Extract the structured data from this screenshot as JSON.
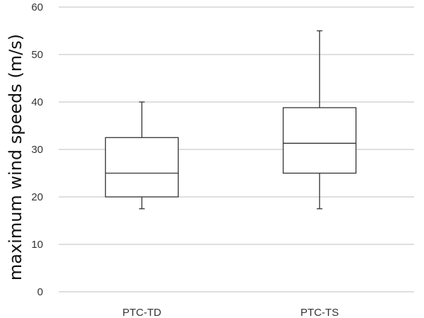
{
  "chart_data": {
    "type": "box",
    "ylabel": "maximum wind speeds (m/s)",
    "ylim": [
      0,
      60
    ],
    "yticks": [
      "0",
      "10",
      "20",
      "30",
      "40",
      "50",
      "60"
    ],
    "grid": true,
    "categories": [
      "PTC-TD",
      "PTC-TS"
    ],
    "boxes": [
      {
        "name": "PTC-TD",
        "min": 17.5,
        "q1": 20,
        "median": 25,
        "q3": 32.5,
        "max": 40
      },
      {
        "name": "PTC-TS",
        "min": 17.5,
        "q1": 25,
        "median": 31.3,
        "q3": 38.8,
        "max": 55
      }
    ]
  }
}
